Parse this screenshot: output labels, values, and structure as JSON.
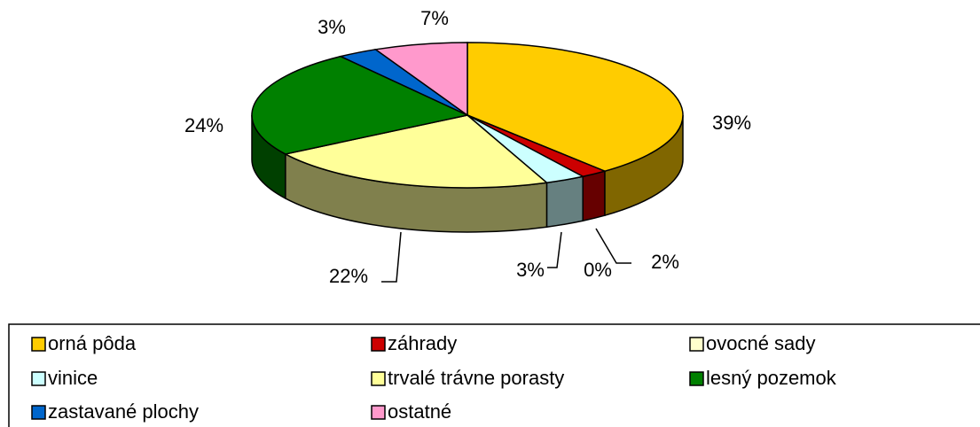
{
  "chart_data": {
    "type": "pie",
    "categories": [
      "orná pôda",
      "záhrady",
      "ovocné sady",
      "vinice",
      "trvalé trávne porasty",
      "lesný pozemok",
      "zastavané plochy",
      "ostatné"
    ],
    "values": [
      39,
      2,
      0,
      3,
      22,
      24,
      3,
      7
    ],
    "value_labels": [
      "39%",
      "2%",
      "0%",
      "3%",
      "22%",
      "24%",
      "3%",
      "7%"
    ],
    "colors": [
      "#FFCC00",
      "#CC0000",
      "#FFFFCC",
      "#CCFFFF",
      "#FFFF99",
      "#008000",
      "#0066CC",
      "#FF99CC"
    ],
    "legend": "bottom"
  }
}
